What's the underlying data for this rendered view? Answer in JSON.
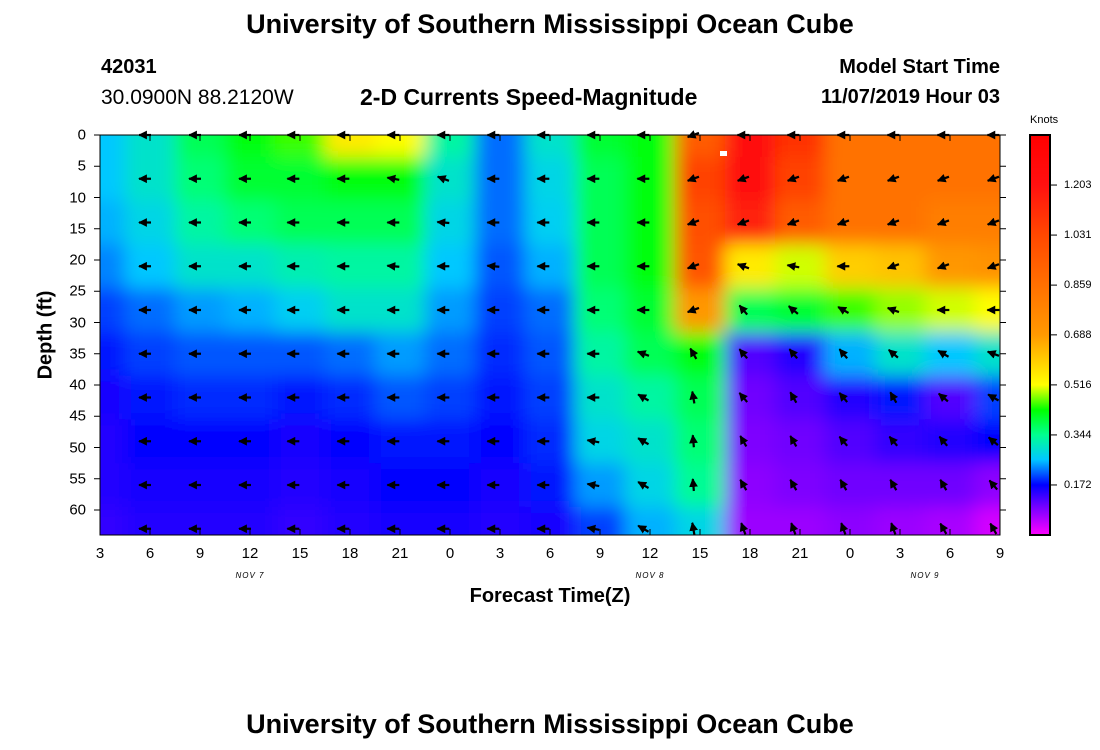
{
  "header": {
    "title": "University of Southern Mississippi Ocean Cube",
    "station_id": "42031",
    "coords": "30.0900N 88.2120W",
    "plot_title": "2-D Currents Speed-Magnitude",
    "model_start_label": "Model Start Time",
    "model_start_value": "11/07/2019 Hour 03"
  },
  "footer": {
    "title": "University of Southern Mississippi Ocean Cube"
  },
  "colorbar": {
    "unit_label": "Knots",
    "ticks": [
      "1.203",
      "1.031",
      "0.859",
      "0.688",
      "0.516",
      "0.344",
      "0.172"
    ],
    "tick_values": [
      1.203,
      1.031,
      0.859,
      0.688,
      0.516,
      0.344,
      0.172
    ],
    "range": [
      0,
      1.375
    ],
    "stops": [
      {
        "v": 0.0,
        "color": "#ff00ff"
      },
      {
        "v": 0.1,
        "color": "#7000ff"
      },
      {
        "v": 0.172,
        "color": "#0000ff"
      },
      {
        "v": 0.26,
        "color": "#00c8ff"
      },
      {
        "v": 0.344,
        "color": "#00ff90"
      },
      {
        "v": 0.43,
        "color": "#00ff00"
      },
      {
        "v": 0.516,
        "color": "#ffff00"
      },
      {
        "v": 0.688,
        "color": "#ff9a00"
      },
      {
        "v": 0.859,
        "color": "#ff7000"
      },
      {
        "v": 1.031,
        "color": "#ff4800"
      },
      {
        "v": 1.203,
        "color": "#ff1010"
      },
      {
        "v": 1.375,
        "color": "#ff0000"
      }
    ]
  },
  "chart_data": {
    "type": "heatmap",
    "title": "2-D Currents Speed-Magnitude",
    "xlabel": "Forecast Time(Z)",
    "ylabel": "Depth (ft)",
    "x_tick_labels": [
      "3",
      "6",
      "9",
      "12",
      "15",
      "18",
      "21",
      "0",
      "3",
      "6",
      "9",
      "12",
      "15",
      "18",
      "21",
      "0",
      "3",
      "6",
      "9"
    ],
    "x_tick_hours": [
      3,
      6,
      9,
      12,
      15,
      18,
      21,
      24,
      27,
      30,
      33,
      36,
      39,
      42,
      45,
      48,
      51,
      54,
      57
    ],
    "xlim": [
      3,
      57
    ],
    "day_labels": [
      {
        "text": "NOV 7",
        "hour": 12
      },
      {
        "text": "NOV 8",
        "hour": 36
      },
      {
        "text": "NOV 9",
        "hour": 52.5
      }
    ],
    "y_tick_labels": [
      "0",
      "5",
      "10",
      "15",
      "20",
      "25",
      "30",
      "35",
      "40",
      "45",
      "50",
      "55",
      "60"
    ],
    "y_tick_values": [
      0,
      5,
      10,
      15,
      20,
      25,
      30,
      35,
      40,
      45,
      50,
      55,
      60
    ],
    "ylim": [
      0,
      64
    ],
    "units": "Knots",
    "hours": [
      3,
      6,
      9,
      12,
      15,
      18,
      21,
      24,
      27,
      30,
      33,
      36,
      39,
      42,
      45,
      48,
      51,
      54,
      57
    ],
    "depths": [
      0,
      7,
      14,
      21,
      28,
      35,
      42,
      49,
      56,
      63
    ],
    "speed": [
      [
        0.26,
        0.3,
        0.38,
        0.42,
        0.45,
        0.55,
        0.52,
        0.33,
        0.22,
        0.3,
        0.4,
        0.42,
        0.95,
        1.25,
        1.1,
        0.85,
        0.85,
        0.85,
        0.85
      ],
      [
        0.26,
        0.3,
        0.36,
        0.4,
        0.4,
        0.42,
        0.42,
        0.3,
        0.22,
        0.28,
        0.38,
        0.42,
        1.05,
        1.25,
        1.05,
        0.85,
        0.85,
        0.85,
        0.85
      ],
      [
        0.25,
        0.28,
        0.33,
        0.36,
        0.38,
        0.38,
        0.38,
        0.28,
        0.22,
        0.27,
        0.38,
        0.42,
        1.0,
        1.15,
        0.95,
        0.85,
        0.85,
        0.8,
        0.8
      ],
      [
        0.23,
        0.26,
        0.3,
        0.3,
        0.32,
        0.33,
        0.33,
        0.26,
        0.21,
        0.25,
        0.38,
        0.42,
        0.98,
        0.55,
        0.5,
        0.6,
        0.62,
        0.7,
        0.72
      ],
      [
        0.2,
        0.22,
        0.24,
        0.25,
        0.27,
        0.3,
        0.3,
        0.24,
        0.2,
        0.22,
        0.36,
        0.4,
        0.7,
        0.38,
        0.4,
        0.45,
        0.48,
        0.5,
        0.52
      ],
      [
        0.18,
        0.2,
        0.21,
        0.21,
        0.21,
        0.22,
        0.24,
        0.22,
        0.19,
        0.21,
        0.33,
        0.38,
        0.42,
        0.12,
        0.15,
        0.25,
        0.3,
        0.26,
        0.3
      ],
      [
        0.16,
        0.18,
        0.19,
        0.19,
        0.18,
        0.19,
        0.21,
        0.2,
        0.18,
        0.2,
        0.3,
        0.33,
        0.38,
        0.1,
        0.12,
        0.15,
        0.18,
        0.12,
        0.2
      ],
      [
        0.15,
        0.17,
        0.17,
        0.17,
        0.16,
        0.17,
        0.18,
        0.18,
        0.17,
        0.19,
        0.28,
        0.3,
        0.36,
        0.09,
        0.1,
        0.12,
        0.14,
        0.15,
        0.17
      ],
      [
        0.15,
        0.16,
        0.16,
        0.16,
        0.15,
        0.16,
        0.17,
        0.17,
        0.16,
        0.18,
        0.24,
        0.28,
        0.34,
        0.08,
        0.09,
        0.1,
        0.1,
        0.1,
        0.08
      ],
      [
        0.14,
        0.15,
        0.15,
        0.15,
        0.14,
        0.15,
        0.16,
        0.16,
        0.15,
        0.16,
        0.2,
        0.25,
        0.28,
        0.07,
        0.07,
        0.08,
        0.07,
        0.06,
        0.03
      ]
    ],
    "arrow_rows_ft": [
      0,
      7,
      14,
      21,
      28,
      35,
      42,
      49,
      56,
      63
    ],
    "arrow_cols_hours": [
      5.7,
      8.7,
      11.7,
      14.6,
      17.6,
      20.6,
      23.6,
      26.6,
      29.6,
      32.6,
      35.6,
      38.6,
      41.6,
      44.6,
      47.6,
      50.6,
      53.6,
      56.6
    ],
    "direction_deg": [
      [
        180,
        180,
        180,
        180,
        180,
        180,
        180,
        180,
        180,
        180,
        180,
        200,
        180,
        180,
        180,
        180,
        180,
        180
      ],
      [
        180,
        180,
        180,
        180,
        180,
        170,
        160,
        180,
        180,
        180,
        180,
        200,
        200,
        200,
        200,
        200,
        200,
        200
      ],
      [
        180,
        180,
        180,
        180,
        180,
        180,
        175,
        180,
        180,
        180,
        180,
        200,
        200,
        200,
        200,
        200,
        200,
        200
      ],
      [
        180,
        180,
        180,
        180,
        180,
        175,
        180,
        175,
        180,
        180,
        180,
        200,
        160,
        170,
        180,
        200,
        200,
        200
      ],
      [
        180,
        180,
        180,
        180,
        180,
        180,
        180,
        180,
        180,
        180,
        180,
        200,
        130,
        140,
        150,
        160,
        180,
        180
      ],
      [
        180,
        180,
        180,
        180,
        180,
        180,
        180,
        180,
        180,
        180,
        160,
        120,
        130,
        130,
        130,
        140,
        150,
        160
      ],
      [
        180,
        180,
        180,
        180,
        180,
        180,
        180,
        180,
        180,
        180,
        150,
        100,
        130,
        120,
        130,
        120,
        140,
        150
      ],
      [
        180,
        180,
        180,
        180,
        180,
        180,
        180,
        180,
        180,
        170,
        150,
        95,
        120,
        120,
        130,
        130,
        130,
        140
      ],
      [
        180,
        180,
        180,
        180,
        180,
        180,
        180,
        180,
        180,
        170,
        150,
        95,
        120,
        120,
        120,
        120,
        120,
        130
      ],
      [
        180,
        180,
        180,
        180,
        180,
        180,
        180,
        180,
        180,
        170,
        150,
        100,
        110,
        110,
        110,
        110,
        120,
        120
      ]
    ]
  }
}
